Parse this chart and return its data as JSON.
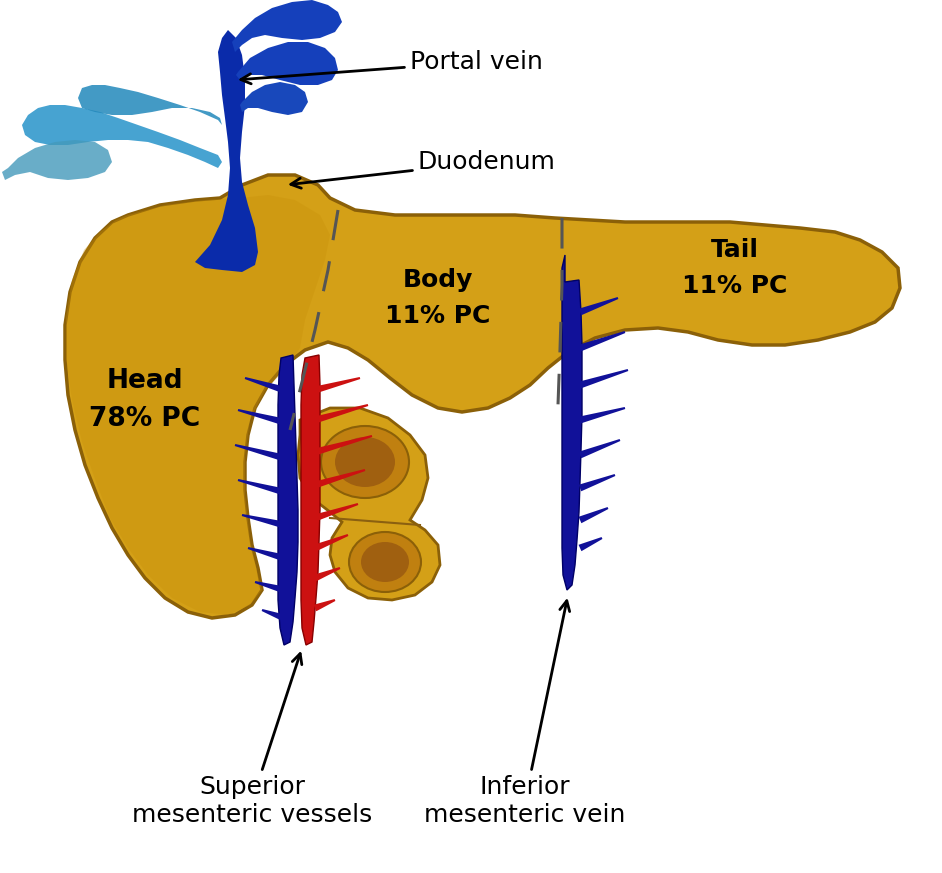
{
  "background_color": "#ffffff",
  "pancreas_gold": "#D4A017",
  "pancreas_dark": "#B8860B",
  "pancreas_edge": "#8B6008",
  "pancreas_shadow": "#C8900A",
  "portal_dark_blue": "#0A2BAA",
  "portal_light_blue": "#3399CC",
  "artery_red": "#CC1111",
  "vein_blue": "#111199",
  "labels": {
    "portal_vein": "Portal vein",
    "duodenum": "Duodenum",
    "head": "Head\n78% PC",
    "body": "Body\n11% PC",
    "tail": "Tail\n11% PC",
    "superior": "Superior\nmesenteric vessels",
    "inferior": "Inferior\nmesenteric vein"
  },
  "label_fontsize": 18
}
